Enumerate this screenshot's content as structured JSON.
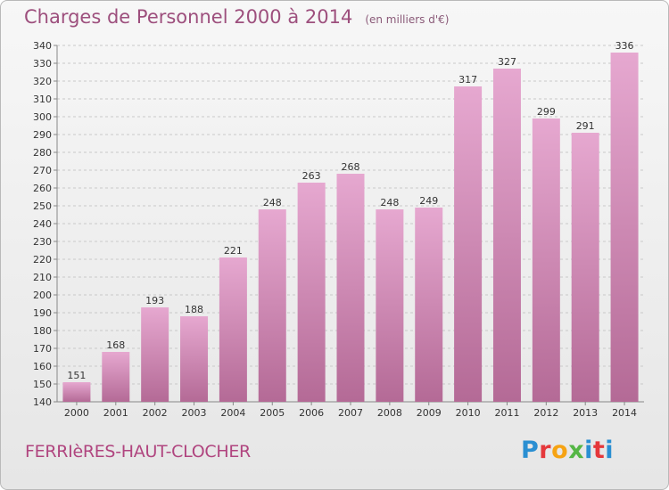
{
  "header": {
    "title": "Charges de Personnel 2000 à 2014",
    "subtitle": "(en milliers d'€)"
  },
  "commune": "FERRIèRES-HAUT-CLOCHER",
  "logo": "Proxiti",
  "colors": {
    "bar_top": "#e6a8d0",
    "bar_bottom": "#b46a96",
    "title": "#9d4f7d",
    "commune": "#b0457f"
  },
  "chart_data": {
    "type": "bar",
    "categories": [
      "2000",
      "2001",
      "2002",
      "2003",
      "2004",
      "2005",
      "2006",
      "2007",
      "2008",
      "2009",
      "2010",
      "2011",
      "2012",
      "2013",
      "2014"
    ],
    "values": [
      151,
      168,
      193,
      188,
      221,
      248,
      263,
      268,
      248,
      249,
      317,
      327,
      299,
      291,
      336
    ],
    "title": "Charges de Personnel 2000 à 2014",
    "subtitle": "(en milliers d'€)",
    "ylim": [
      140,
      340
    ],
    "yticks": [
      140,
      150,
      160,
      170,
      180,
      190,
      200,
      210,
      220,
      230,
      240,
      250,
      260,
      270,
      280,
      290,
      300,
      310,
      320,
      330,
      340
    ],
    "grid": true,
    "legend": "none",
    "data_labels": true
  }
}
